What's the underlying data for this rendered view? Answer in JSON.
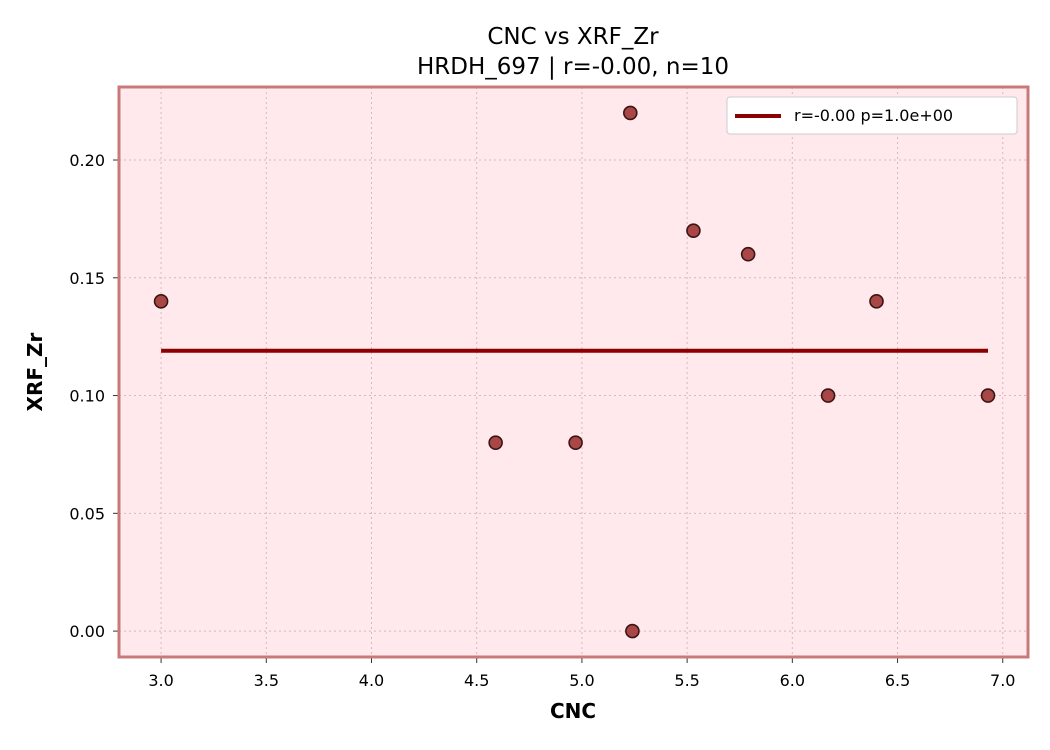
{
  "chart_data": {
    "type": "scatter",
    "title": "CNC vs XRF_Zr",
    "subtitle": "HRDH_697 | r=-0.00, n=10",
    "xlabel": "CNC",
    "ylabel": "XRF_Zr",
    "xlim": [
      2.8,
      7.12
    ],
    "ylim": [
      -0.011,
      0.231
    ],
    "x_ticks": [
      3.0,
      3.5,
      4.0,
      4.5,
      5.0,
      5.5,
      6.0,
      6.5,
      7.0
    ],
    "x_tick_labels": [
      "3.0",
      "3.5",
      "4.0",
      "4.5",
      "5.0",
      "5.5",
      "6.0",
      "6.5",
      "7.0"
    ],
    "y_ticks": [
      0.0,
      0.05,
      0.1,
      0.15,
      0.2
    ],
    "y_tick_labels": [
      "0.00",
      "0.05",
      "0.10",
      "0.15",
      "0.20"
    ],
    "grid": true,
    "legend_position": "top-right",
    "points": [
      {
        "x": 3.0,
        "y": 0.14
      },
      {
        "x": 4.59,
        "y": 0.08
      },
      {
        "x": 4.97,
        "y": 0.08
      },
      {
        "x": 5.23,
        "y": 0.22
      },
      {
        "x": 5.24,
        "y": 0.0
      },
      {
        "x": 5.53,
        "y": 0.17
      },
      {
        "x": 5.79,
        "y": 0.16
      },
      {
        "x": 6.17,
        "y": 0.1
      },
      {
        "x": 6.4,
        "y": 0.14
      },
      {
        "x": 6.93,
        "y": 0.1
      }
    ],
    "fit_line": {
      "x": [
        3.0,
        6.93
      ],
      "y": [
        0.119,
        0.119
      ]
    },
    "legend": [
      {
        "label": "r=-0.00  p=1.0e+00"
      }
    ],
    "colors": {
      "background": "#ffe9ec",
      "frame": "#c87a7a",
      "point_fill": "#a94646",
      "point_edge": "#3a1515",
      "line": "#8b0000",
      "grid": "#d9b8bc"
    }
  }
}
